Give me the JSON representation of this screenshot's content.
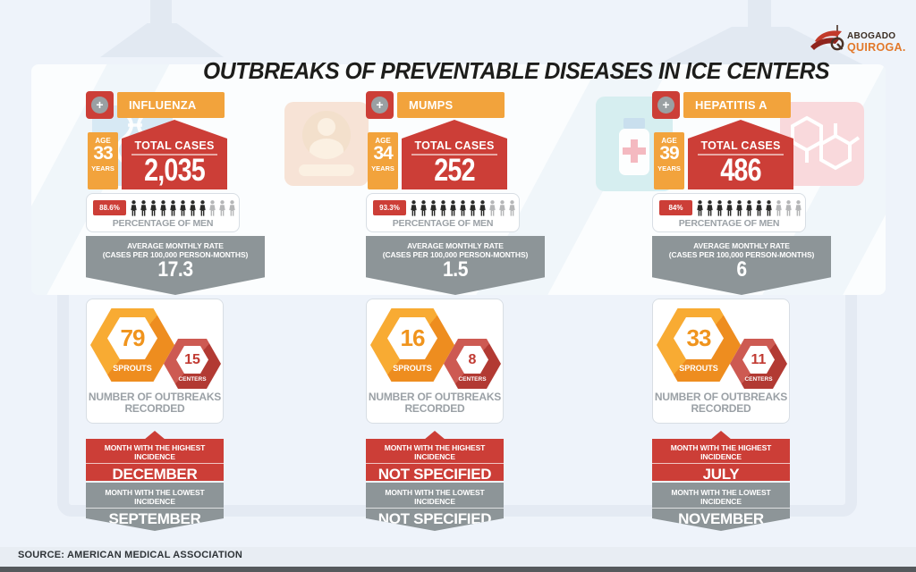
{
  "title": "OUTBREAKS OF PREVENTABLE DISEASES IN ICE CENTERS",
  "logo": {
    "line1": "ABOGADO",
    "line2": "QUIROGA."
  },
  "source": "SOURCE: AMERICAN MEDICAL ASSOCIATION",
  "labels": {
    "plus": "+",
    "age": "AGE",
    "years": "YEARS",
    "total_cases": "TOTAL CASES",
    "percentage_of_men": "PERCENTAGE OF MEN",
    "avg_rate_line1": "AVERAGE MONTHLY RATE",
    "avg_rate_line2": "(CASES PER 100,000 PERSON-MONTHS)",
    "sprouts": "SPROUTS",
    "centers": "CENTERS",
    "outbreaks_line1": "NUMBER OF OUTBREAKS",
    "outbreaks_line2": "RECORDED",
    "highest": "MONTH WITH THE HIGHEST INCIDENCE",
    "lowest": "MONTH WITH THE LOWEST INCIDENCE"
  },
  "colors": {
    "orange": "#F2A33C",
    "orange_light": "#F8AB33",
    "orange_dark": "#EE8D1F",
    "red": "#CC3E37",
    "red_light": "#CD5A52",
    "red_dark": "#B23A33",
    "gray": "#8D9598",
    "gray_text": "#9BA1A6",
    "man_dark": "#2B2B29",
    "man_light": "#B5B6B7",
    "background": "#EEF3FA"
  },
  "diseases": [
    {
      "name": "INFLUENZA",
      "age": "33",
      "total_cases": "2,035",
      "pct_men": "88.6%",
      "men_dark": 8,
      "men_total": 11,
      "avg_rate": "17.3",
      "sprouts": "79",
      "centers": "15",
      "highest_month": "DECEMBER",
      "lowest_month": "SEPTEMBER"
    },
    {
      "name": "MUMPS",
      "age": "34",
      "total_cases": "252",
      "pct_men": "93.3%",
      "men_dark": 8,
      "men_total": 11,
      "avg_rate": "1.5",
      "sprouts": "16",
      "centers": "8",
      "highest_month": "NOT SPECIFIED",
      "lowest_month": "NOT SPECIFIED"
    },
    {
      "name": "HEPATITIS A",
      "age": "39",
      "total_cases": "486",
      "pct_men": "84%",
      "men_dark": 8,
      "men_total": 11,
      "avg_rate": "6",
      "sprouts": "33",
      "centers": "11",
      "highest_month": "JULY",
      "lowest_month": "NOVEMBER"
    }
  ],
  "chart_data": {
    "type": "table",
    "title": "Outbreaks of Preventable Diseases in ICE Centers",
    "columns": [
      "Disease",
      "Average age (years)",
      "Total cases",
      "Percentage of men",
      "Average monthly rate (cases per 100,000 person-months)",
      "Sprouts (outbreaks)",
      "Centers",
      "Month with highest incidence",
      "Month with lowest incidence"
    ],
    "rows": [
      [
        "Influenza",
        33,
        2035,
        "88.6%",
        17.3,
        79,
        15,
        "December",
        "September"
      ],
      [
        "Mumps",
        34,
        252,
        "93.3%",
        1.5,
        16,
        8,
        "Not specified",
        "Not specified"
      ],
      [
        "Hepatitis A",
        39,
        486,
        "84%",
        6,
        33,
        11,
        "July",
        "November"
      ]
    ],
    "source": "American Medical Association"
  }
}
